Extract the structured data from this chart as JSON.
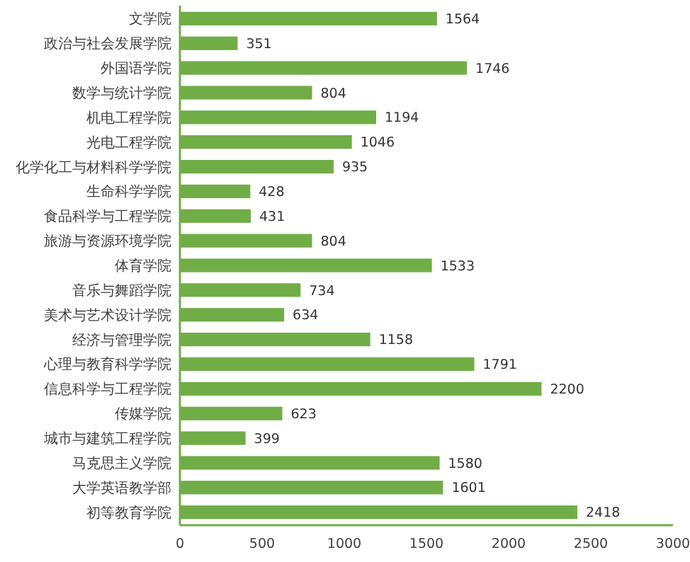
{
  "chart_data": {
    "type": "bar",
    "orientation": "horizontal",
    "categories": [
      "文学院",
      "政治与社会发展学院",
      "外国语学院",
      "数学与统计学院",
      "机电工程学院",
      "光电工程学院",
      "化学化工与材料科学学院",
      "生命科学学院",
      "食品科学与工程学院",
      "旅游与资源环境学院",
      "体育学院",
      "音乐与舞蹈学院",
      "美术与艺术设计学院",
      "经济与管理学院",
      "心理与教育科学学院",
      "信息科学与工程学院",
      "传媒学院",
      "城市与建筑工程学院",
      "马克思主义学院",
      "大学英语教学部",
      "初等教育学院"
    ],
    "values": [
      1564,
      351,
      1746,
      804,
      1194,
      1046,
      935,
      428,
      431,
      804,
      1533,
      734,
      634,
      1158,
      1791,
      2200,
      623,
      399,
      1580,
      1601,
      2418
    ],
    "color": "#70ad47",
    "xlim": [
      0,
      3000
    ],
    "xticks": [
      0,
      500,
      1000,
      1500,
      2000,
      2500,
      3000
    ],
    "data_labels": true
  }
}
